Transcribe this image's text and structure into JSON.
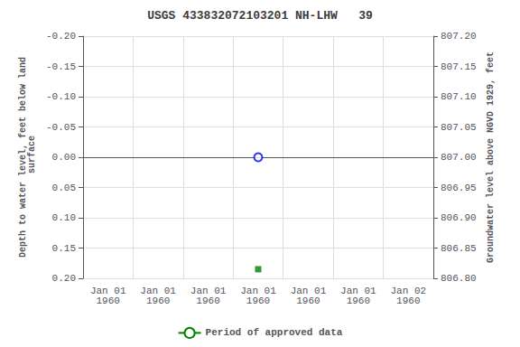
{
  "chart_data": {
    "type": "scatter",
    "title": "USGS 433832072103201 NH-LHW   39",
    "ylabel": "Depth to water level, feet below land\n surface",
    "y2label": "Groundwater level above NGVD 1929, feet",
    "categories": [
      "Jan 01\n1960",
      "Jan 01\n1960",
      "Jan 01\n1960",
      "Jan 01\n1960",
      "Jan 01\n1960",
      "Jan 01\n1960",
      "Jan 02\n1960"
    ],
    "ylim": [
      0.2,
      -0.2
    ],
    "yticks": [
      {
        "value": -0.2,
        "label": "-0.20"
      },
      {
        "value": -0.15,
        "label": "-0.15"
      },
      {
        "value": -0.1,
        "label": "-0.10"
      },
      {
        "value": -0.05,
        "label": "-0.05"
      },
      {
        "value": 0,
        "label": "0.00"
      },
      {
        "value": 0.05,
        "label": "0.05"
      },
      {
        "value": 0.1,
        "label": "0.10"
      },
      {
        "value": 0.15,
        "label": "0.15"
      },
      {
        "value": 0.2,
        "label": "0.20"
      }
    ],
    "y2lim": [
      806.8,
      807.2
    ],
    "y2ticks": [
      {
        "value": 806.8,
        "label": "806.80"
      },
      {
        "value": 806.85,
        "label": "806.85"
      },
      {
        "value": 806.9,
        "label": "806.90"
      },
      {
        "value": 806.95,
        "label": "806.95"
      },
      {
        "value": 807,
        "label": "807.00"
      },
      {
        "value": 807.05,
        "label": "807.05"
      },
      {
        "value": 807.1,
        "label": "807.10"
      },
      {
        "value": 807.15,
        "label": "807.15"
      },
      {
        "value": 807.2,
        "label": "807.20"
      }
    ],
    "grid": true,
    "legend": "bottom",
    "series": [
      {
        "type": "scatter",
        "color": "#0000ff",
        "marker": "circle_open",
        "values": [
          null,
          null,
          null,
          0,
          null,
          null,
          null
        ]
      },
      {
        "type": "scatter",
        "color": "#008000",
        "marker": "square",
        "values": [
          null,
          null,
          null,
          0.185,
          null,
          null,
          null
        ]
      },
      {
        "name": "Period of approved data",
        "type": "line",
        "color": "#008000",
        "line_style": "solid",
        "values": [
          null,
          null,
          null,
          null,
          null,
          null,
          null
        ]
      }
    ]
  }
}
